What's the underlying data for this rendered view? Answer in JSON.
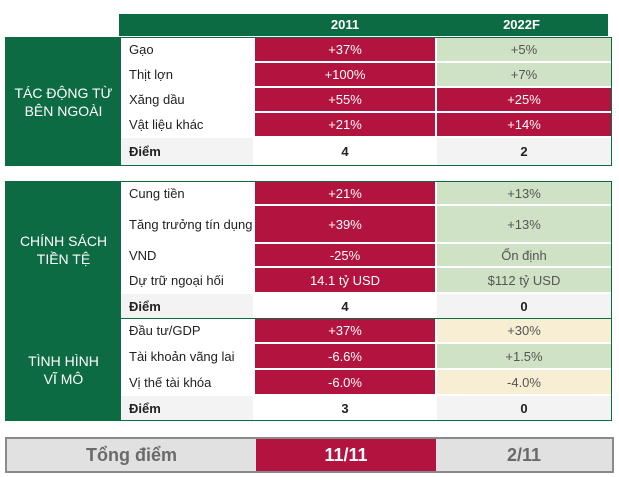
{
  "header": {
    "col1": "2011",
    "col2": "2022F"
  },
  "sections": [
    {
      "label": "TÁC ĐỘNG TỪ\nBÊN NGOÀI",
      "rows": [
        {
          "name": "Gạo",
          "v1": "+37%",
          "v2": "+5%"
        },
        {
          "name": "Thịt lợn",
          "v1": "+100%",
          "v2": "+7%"
        },
        {
          "name": "Xăng dầu",
          "v1": "+55%",
          "v2": "+25%"
        },
        {
          "name": "Vật liệu khác",
          "v1": "+21%",
          "v2": "+14%"
        }
      ],
      "score": {
        "name": "Điểm",
        "v1": "4",
        "v2": "2"
      }
    },
    {
      "label": "CHÍNH SÁCH\nTIỀN TỆ",
      "rows": [
        {
          "name": "Cung tiền",
          "v1": "+21%",
          "v2": "+13%"
        },
        {
          "name": "Tăng trưởng tín dụng",
          "v1": "+39%",
          "v2": "+13%"
        },
        {
          "name": "VND",
          "v1": "-25%",
          "v2": "Ổn định"
        },
        {
          "name": "Dự trữ ngoại hối",
          "v1": "14.1 tỷ USD",
          "v2": "$112 tỷ USD"
        }
      ],
      "score": {
        "name": "Điểm",
        "v1": "4",
        "v2": "0"
      }
    },
    {
      "label": "TÌNH HÌNH\nVĨ MÔ",
      "rows": [
        {
          "name": "Đầu tư/GDP",
          "v1": "+37%",
          "v2": "+30%"
        },
        {
          "name": "Tài khoản vãng lai",
          "v1": "-6.6%",
          "v2": "+1.5%"
        },
        {
          "name": "Vị thế tài khóa",
          "v1": "-6.0%",
          "v2": "-4.0%"
        }
      ],
      "score": {
        "name": "Điểm",
        "v1": "3",
        "v2": "0"
      }
    }
  ],
  "total": {
    "label": "Tổng điểm",
    "v1": "11/11",
    "v2": "2/11"
  },
  "colors": {
    "green_dark": "#0d6b44",
    "red": "#b3133f",
    "green_light": "#cfe2c5",
    "beige": "#f8eed4"
  }
}
